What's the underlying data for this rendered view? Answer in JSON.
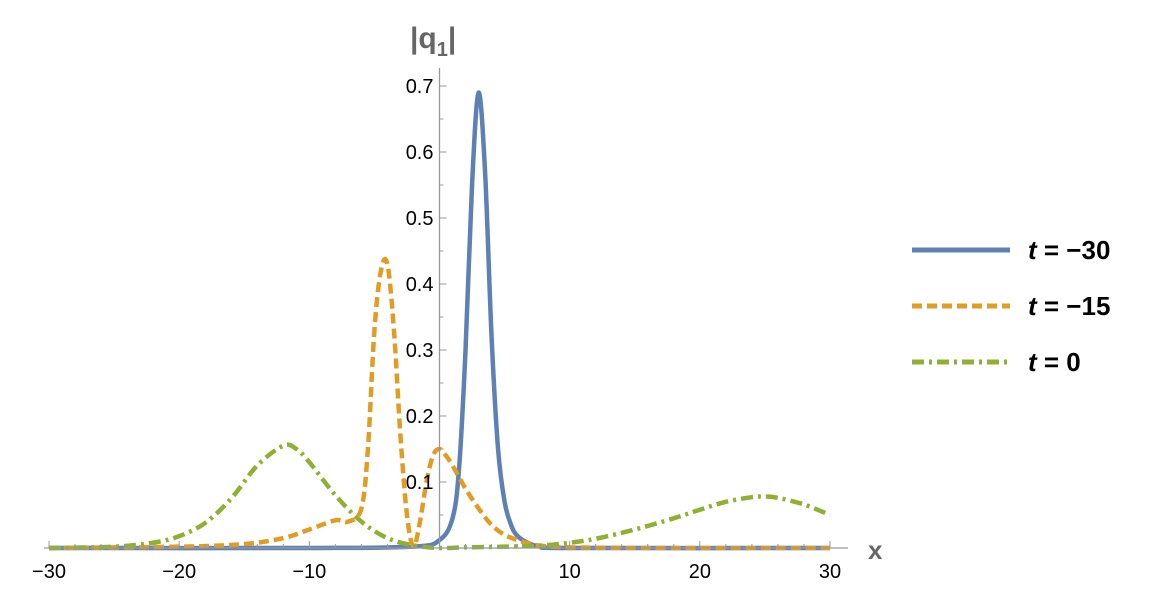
{
  "chart_data": {
    "type": "line",
    "title": "",
    "xlabel": "x",
    "ylabel": "|q1|",
    "ylabel_main": "|q",
    "ylabel_sub": "1",
    "ylabel_close": "|",
    "xlim": [
      -30,
      30
    ],
    "ylim": [
      0,
      0.72
    ],
    "x_ticks": [
      -30,
      -20,
      -10,
      10,
      20,
      30
    ],
    "x_tick_labels": [
      "−30",
      "−20",
      "−10",
      "10",
      "20",
      "30"
    ],
    "y_ticks": [
      0.1,
      0.2,
      0.3,
      0.4,
      0.5,
      0.6,
      0.7
    ],
    "y_tick_labels": [
      "0.1",
      "0.2",
      "0.3",
      "0.4",
      "0.5",
      "0.6",
      "0.7"
    ],
    "grid": false,
    "legend_position": "right",
    "series": [
      {
        "name": "t = −30",
        "t_label": "t",
        "eq_label": " = −30",
        "color": "#5e81b5",
        "dash": "solid",
        "x": [
          -30,
          -10,
          -2,
          0,
          1,
          1.5,
          2,
          2.5,
          3,
          3.5,
          4,
          4.5,
          5,
          5.5,
          6,
          7,
          8,
          10,
          30
        ],
        "y": [
          0,
          0,
          0.002,
          0.012,
          0.045,
          0.12,
          0.3,
          0.55,
          0.69,
          0.57,
          0.32,
          0.15,
          0.07,
          0.035,
          0.018,
          0.006,
          0.002,
          0,
          0
        ]
      },
      {
        "name": "t = −15",
        "t_label": "t",
        "eq_label": " = −15",
        "color": "#e19c24",
        "dash": "dashed",
        "x": [
          -30,
          -20,
          -15,
          -12,
          -10,
          -8,
          -7,
          -6,
          -5.5,
          -5,
          -4.5,
          -4,
          -3.5,
          -3,
          -2.5,
          -2,
          -1.5,
          -1,
          -0.5,
          0,
          0.5,
          1,
          2,
          3,
          4,
          5,
          6,
          7,
          8,
          10,
          15,
          20,
          30
        ],
        "y": [
          0,
          0.002,
          0.006,
          0.015,
          0.028,
          0.042,
          0.04,
          0.06,
          0.15,
          0.33,
          0.42,
          0.43,
          0.33,
          0.17,
          0.05,
          0.002,
          0.04,
          0.1,
          0.14,
          0.15,
          0.14,
          0.125,
          0.09,
          0.06,
          0.035,
          0.02,
          0.012,
          0.006,
          0.003,
          0.001,
          0,
          0,
          0
        ]
      },
      {
        "name": "t = 0",
        "t_label": "t",
        "eq_label": " = 0",
        "color": "#8fb032",
        "dash": "dashdot",
        "x": [
          -30,
          -25,
          -22,
          -20,
          -18,
          -16,
          -14,
          -12,
          -11,
          -10,
          -8,
          -6,
          -4,
          -2,
          0,
          2,
          5,
          8,
          10,
          12,
          15,
          18,
          20,
          22,
          24,
          25,
          26,
          28,
          30
        ],
        "y": [
          0,
          0.002,
          0.008,
          0.018,
          0.038,
          0.075,
          0.125,
          0.155,
          0.15,
          0.13,
          0.08,
          0.04,
          0.015,
          0.004,
          0,
          0.001,
          0.002,
          0.004,
          0.008,
          0.014,
          0.028,
          0.045,
          0.058,
          0.07,
          0.077,
          0.078,
          0.076,
          0.066,
          0.05
        ]
      }
    ]
  }
}
